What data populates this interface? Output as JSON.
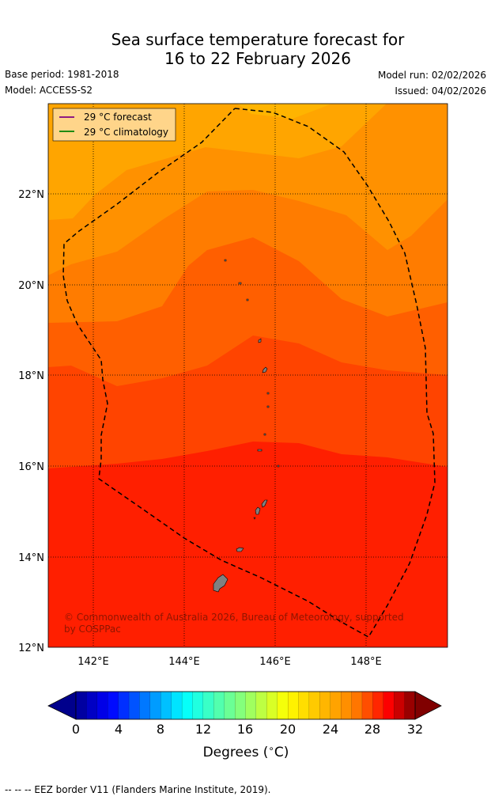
{
  "title": {
    "line1": "Sea surface temperature forecast for",
    "line2": "16 to 22 February 2026"
  },
  "meta": {
    "base_period": "Base period: 1981-2018",
    "model": "Model: ACCESS-S2",
    "model_run": "Model run: 02/02/2026",
    "issued": "Issued: 04/02/2026"
  },
  "map": {
    "lat_ticks": [
      "22°N",
      "20°N",
      "18°N",
      "16°N",
      "14°N",
      "12°N"
    ],
    "lon_ticks": [
      "142°E",
      "144°E",
      "146°E",
      "148°E"
    ],
    "legend": [
      {
        "label": "29 °C  forecast",
        "color": "#800080"
      },
      {
        "label": "29 °C  climatology",
        "color": "#008000"
      }
    ],
    "copyright_line1": "© Commonwealth of Australia 2026, Bureau of Meteorology, supported",
    "copyright_line2": "by COSPPac"
  },
  "colorbar": {
    "ticks": [
      "0",
      "4",
      "8",
      "12",
      "16",
      "20",
      "24",
      "28",
      "32"
    ],
    "label": "Degrees (°C)",
    "label_prefix": "Degrees (",
    "label_unit": "°C",
    "label_suffix": ")"
  },
  "footer": "--  --  -- EEZ border V11 (Flanders Marine Institute, 2019)."
}
